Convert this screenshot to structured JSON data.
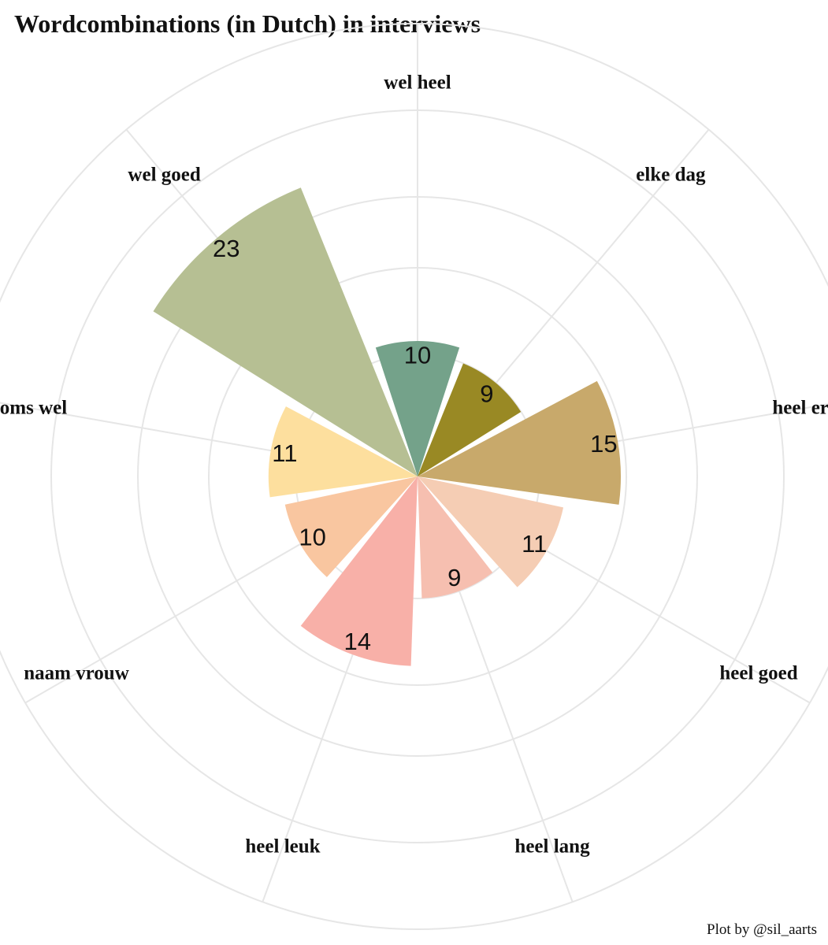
{
  "chart_data": {
    "type": "bar",
    "coord": "polar",
    "title": "Wordcombinations (in Dutch) in interviews",
    "caption": "Plot by @sil_aarts",
    "categories": [
      "wel heel",
      "elke dag",
      "heel erg",
      "heel goed",
      "heel lang",
      "heel leuk",
      "naam vrouw",
      "soms wel",
      "wel goed"
    ],
    "values": [
      10,
      9,
      15,
      11,
      9,
      14,
      10,
      11,
      23
    ],
    "colors": [
      "#74a28a",
      "#998924",
      "#c8a96b",
      "#f5cdb4",
      "#f6bfb0",
      "#f8b0a8",
      "#f9c6a0",
      "#fddf9e",
      "#b6bf93"
    ],
    "grid": true,
    "legend": "none"
  }
}
